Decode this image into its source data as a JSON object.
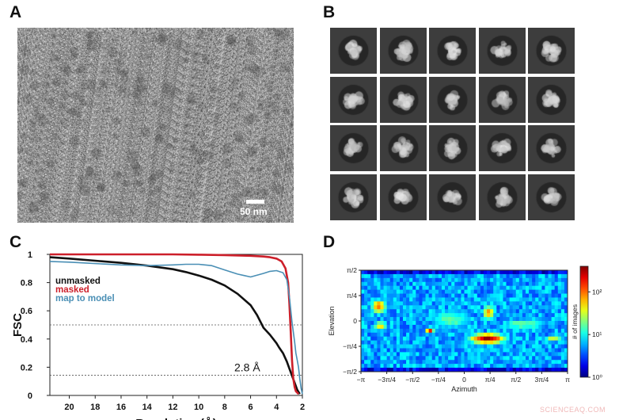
{
  "panels": {
    "a": {
      "label": "A",
      "scale_bar": "50 nm"
    },
    "b": {
      "label": "B",
      "rows": 4,
      "cols": 5
    },
    "c": {
      "label": "C"
    },
    "d": {
      "label": "D"
    }
  },
  "watermark": "SCIENCEAQ.COM",
  "chart_data": [
    {
      "panel": "C",
      "type": "line",
      "ylabel": "FSC",
      "xlabel": "Resolution (Å)",
      "x_ticks": [
        "20",
        "18",
        "16",
        "14",
        "12",
        "10",
        "8",
        "6",
        "4",
        "2"
      ],
      "y_ticks": [
        "0",
        "0.2",
        "0.4",
        "0.6",
        "0.8",
        "1"
      ],
      "xlim": [
        21.5,
        2
      ],
      "ylim": [
        0,
        1
      ],
      "legend": [
        "unmasked",
        "masked",
        "map to model"
      ],
      "legend_placement": "left",
      "thresholds": [
        0.5,
        0.143
      ],
      "annotation": "2.8 Å",
      "series": [
        {
          "name": "unmasked",
          "color": "#111111",
          "x": [
            21.5,
            20,
            18,
            16,
            14,
            12,
            11,
            10,
            9,
            8,
            7,
            6,
            5.5,
            5,
            4.5,
            4,
            3.8,
            3.5,
            3.2,
            3.0,
            2.8,
            2.6,
            2.4,
            2.2
          ],
          "y": [
            0.98,
            0.97,
            0.955,
            0.94,
            0.92,
            0.895,
            0.875,
            0.85,
            0.82,
            0.78,
            0.72,
            0.64,
            0.57,
            0.48,
            0.43,
            0.37,
            0.34,
            0.3,
            0.24,
            0.19,
            0.14,
            0.09,
            0.04,
            0.01
          ]
        },
        {
          "name": "masked",
          "color": "#cc1f2a",
          "x": [
            21.5,
            20,
            18,
            16,
            14,
            12,
            10,
            8,
            6,
            5,
            4.5,
            4.0,
            3.6,
            3.3,
            3.1,
            3.0,
            2.9,
            2.8,
            2.7,
            2.6,
            2.5,
            2.4,
            2.3
          ],
          "y": [
            1.0,
            1.0,
            1.0,
            1.0,
            1.0,
            1.0,
            0.998,
            0.995,
            0.99,
            0.985,
            0.98,
            0.97,
            0.95,
            0.9,
            0.8,
            0.65,
            0.45,
            0.25,
            0.12,
            0.06,
            0.03,
            0.02,
            0.01
          ]
        },
        {
          "name": "map to model",
          "color": "#4a8fb5",
          "x": [
            21.5,
            20,
            18,
            16,
            14,
            12,
            11,
            10,
            9,
            8,
            7,
            6.5,
            6,
            5,
            4.5,
            4,
            3.5,
            3.2,
            3.0,
            2.8,
            2.6,
            2.5,
            2.4,
            2.3,
            2.2,
            2.1,
            2.0
          ],
          "y": [
            0.95,
            0.945,
            0.935,
            0.925,
            0.92,
            0.925,
            0.93,
            0.93,
            0.92,
            0.89,
            0.86,
            0.85,
            0.84,
            0.865,
            0.88,
            0.885,
            0.87,
            0.82,
            0.7,
            0.52,
            0.38,
            0.3,
            0.25,
            0.2,
            0.12,
            0.05,
            0.01
          ]
        }
      ]
    },
    {
      "panel": "D",
      "type": "heatmap",
      "xlabel": "Azimuth",
      "ylabel": "Elevation",
      "x_ticks": [
        "−π",
        "−3π/4",
        "−π/2",
        "−π/4",
        "0",
        "π/4",
        "π/2",
        "3π/4",
        "π"
      ],
      "y_ticks": [
        "−π/2",
        "−π/4",
        "0",
        "π/4",
        "π/2"
      ],
      "colorbar_label": "# of images",
      "colorbar_ticks": [
        "10⁰",
        "10¹",
        "10²"
      ],
      "colorbar_log_range": [
        0,
        2.6
      ],
      "hotspots": [
        {
          "az": 0.7,
          "el": -0.55,
          "log": 2.5,
          "saz": 0.45,
          "sel": 0.14
        },
        {
          "az": -2.6,
          "el": 0.45,
          "log": 2.0,
          "saz": 0.2,
          "sel": 0.18
        },
        {
          "az": -2.55,
          "el": -0.15,
          "log": 1.8,
          "saz": 0.17,
          "sel": 0.1
        },
        {
          "az": -1.05,
          "el": -0.3,
          "log": 2.3,
          "saz": 0.1,
          "sel": 0.08
        },
        {
          "az": 0.75,
          "el": 0.25,
          "log": 1.9,
          "saz": 0.15,
          "sel": 0.2
        },
        {
          "az": 1.8,
          "el": -0.1,
          "log": 1.3,
          "saz": 0.6,
          "sel": 0.15
        },
        {
          "az": 2.7,
          "el": -0.55,
          "log": 1.5,
          "saz": 0.25,
          "sel": 0.1
        },
        {
          "az": -0.4,
          "el": 0.05,
          "log": 1.2,
          "saz": 0.6,
          "sel": 0.3
        },
        {
          "az": -1.8,
          "el": 0.9,
          "log": 0.6,
          "saz": 0.4,
          "sel": 0.15
        }
      ]
    }
  ]
}
